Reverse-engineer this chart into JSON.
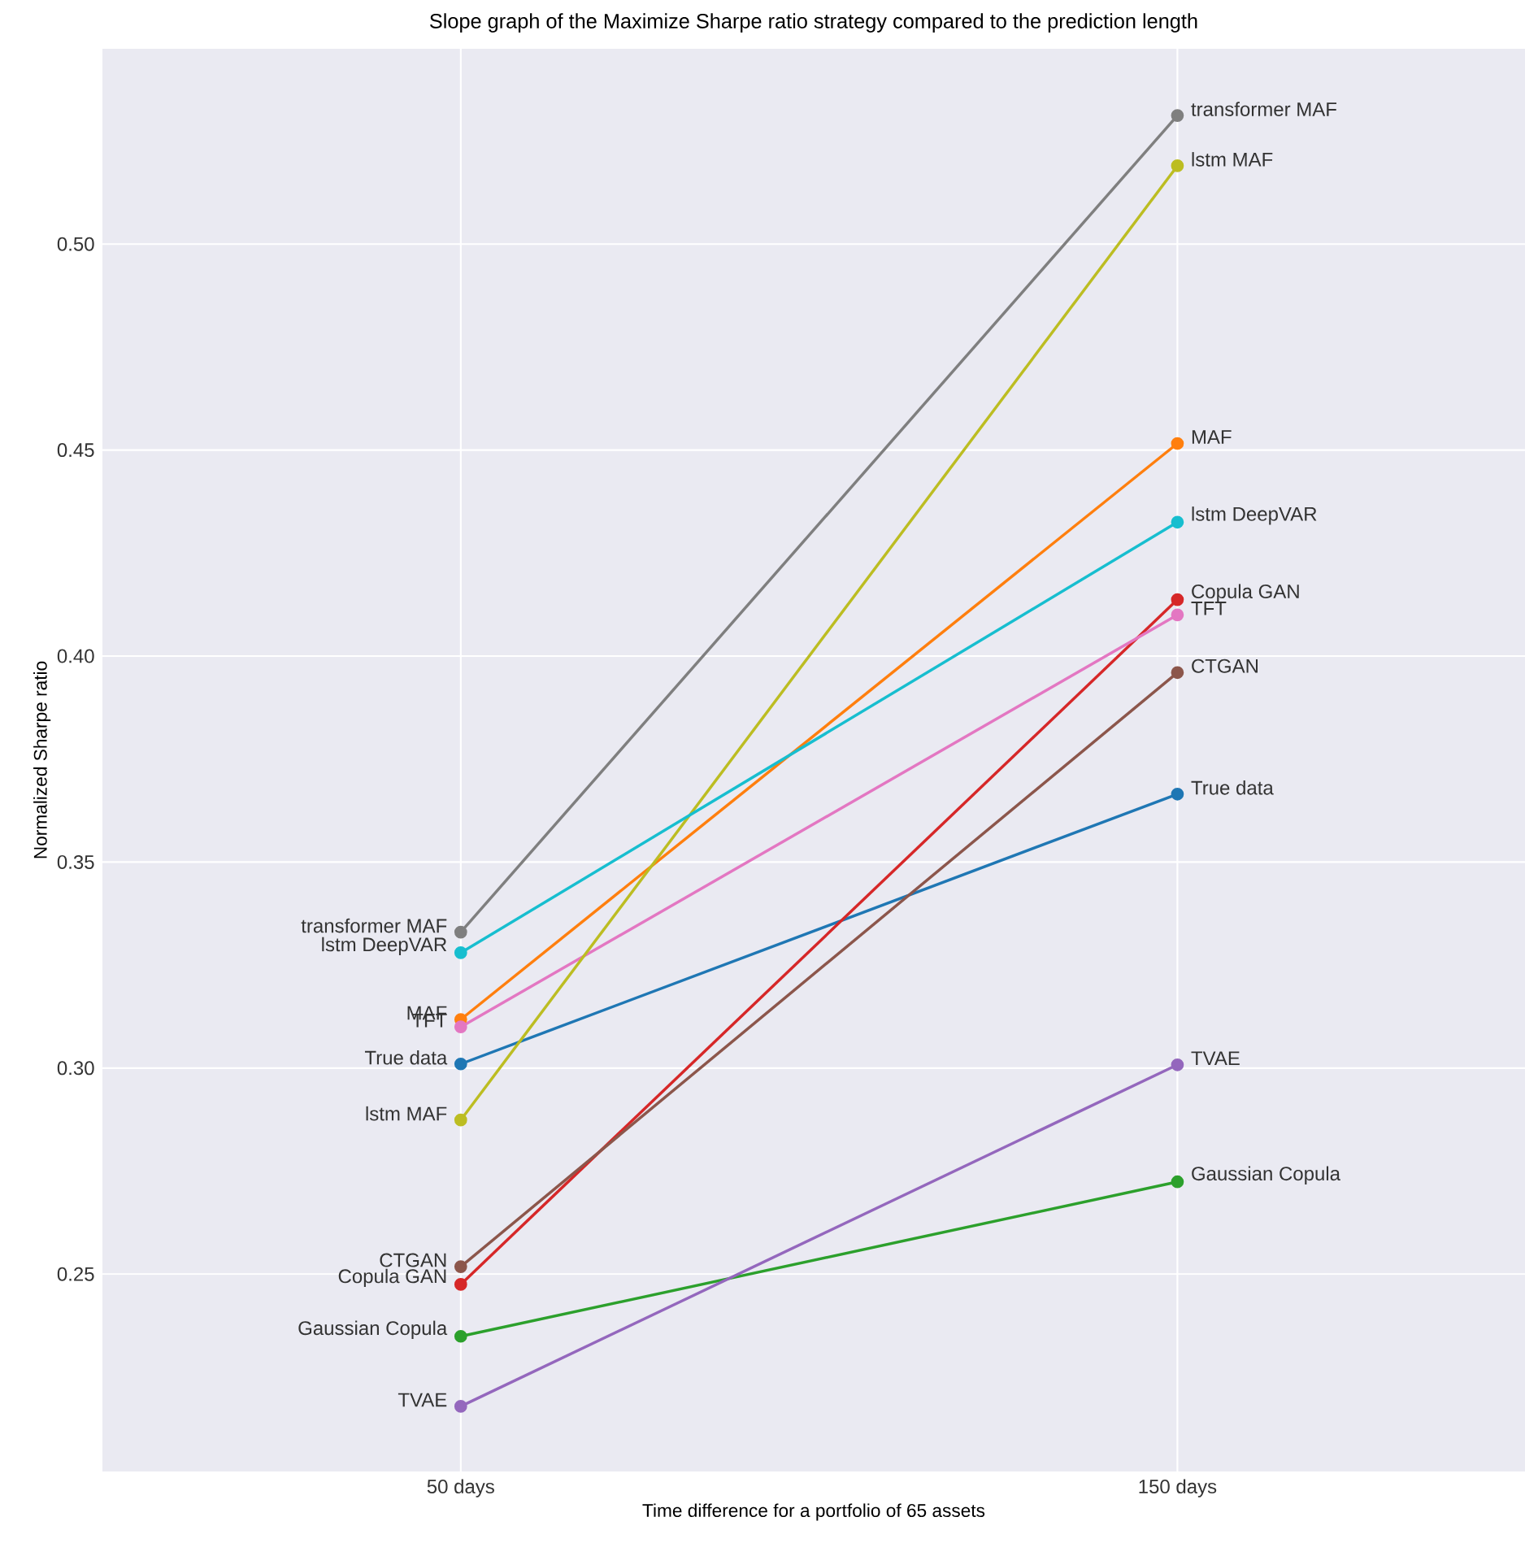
{
  "chart_data": {
    "type": "line",
    "title": "Slope graph of the Maximize Sharpe ratio strategy compared to the prediction length",
    "xlabel": "Time difference for a portfolio of 65 assets",
    "ylabel": "Normalized Sharpe ratio",
    "categories": [
      "50 days",
      "150 days"
    ],
    "series": [
      {
        "name": "True data",
        "color": "#1f77b4",
        "values": [
          0.301,
          0.3665
        ]
      },
      {
        "name": "MAF",
        "color": "#ff7f0e",
        "values": [
          0.3118,
          0.4516
        ]
      },
      {
        "name": "Gaussian Copula",
        "color": "#2ca02c",
        "values": [
          0.2349,
          0.2724
        ]
      },
      {
        "name": "Copula GAN",
        "color": "#d62728",
        "values": [
          0.2475,
          0.4137
        ]
      },
      {
        "name": "TVAE",
        "color": "#9467bd",
        "values": [
          0.2179,
          0.3008
        ]
      },
      {
        "name": "CTGAN",
        "color": "#8c564b",
        "values": [
          0.2518,
          0.396
        ]
      },
      {
        "name": "TFT",
        "color": "#e377c2",
        "values": [
          0.31,
          0.41
        ]
      },
      {
        "name": "transformer MAF",
        "color": "#7f7f7f",
        "values": [
          0.333,
          0.5312
        ]
      },
      {
        "name": "lstm MAF",
        "color": "#bcbd22",
        "values": [
          0.2874,
          0.519
        ]
      },
      {
        "name": "lstm DeepVAR",
        "color": "#17becf",
        "values": [
          0.328,
          0.4325
        ]
      }
    ],
    "ylim": [
      0.2021,
      0.5474
    ],
    "yticks": [
      {
        "value": 0.25,
        "label": "0.25"
      },
      {
        "value": 0.3,
        "label": "0.30"
      },
      {
        "value": 0.35,
        "label": "0.35"
      },
      {
        "value": 0.4,
        "label": "0.40"
      },
      {
        "value": 0.45,
        "label": "0.45"
      },
      {
        "value": 0.5,
        "label": "0.50"
      }
    ],
    "grid": true,
    "legend": false,
    "marker": "circle",
    "line_style": "solid"
  }
}
